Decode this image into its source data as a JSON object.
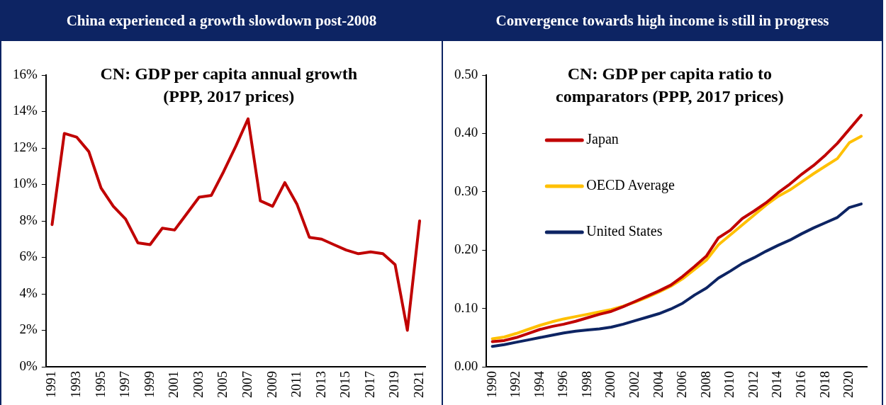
{
  "chart_data": [
    {
      "type": "line",
      "title": "China experienced a growth slowdown post-2008",
      "subtitle": "CN: GDP per capita annual growth (PPP, 2017 prices)",
      "categories": [
        "1991",
        null,
        "1993",
        null,
        "1995",
        null,
        "1997",
        null,
        "1999",
        null,
        "2001",
        null,
        "2003",
        null,
        "2005",
        null,
        "2007",
        null,
        "2009",
        null,
        "2011",
        null,
        "2013",
        null,
        "2015",
        null,
        "2017",
        null,
        "2019",
        null,
        "2021"
      ],
      "values": [
        7.8,
        12.8,
        12.6,
        11.8,
        9.8,
        8.8,
        8.1,
        6.8,
        6.7,
        7.6,
        7.5,
        8.4,
        9.3,
        9.4,
        10.7,
        12.1,
        13.6,
        9.1,
        8.8,
        10.1,
        8.9,
        7.1,
        7.0,
        6.7,
        6.4,
        6.2,
        6.3,
        6.2,
        5.6,
        2.0,
        8.0
      ],
      "color": "#c00000",
      "ylim": [
        0,
        16
      ],
      "yticks": [
        {
          "value": 0,
          "label": "0%"
        },
        {
          "value": 2,
          "label": "2%"
        },
        {
          "value": 4,
          "label": "4%"
        },
        {
          "value": 6,
          "label": "6%"
        },
        {
          "value": 8,
          "label": "8%"
        },
        {
          "value": 10,
          "label": "10%"
        },
        {
          "value": 12,
          "label": "12%"
        },
        {
          "value": 14,
          "label": "14%"
        },
        {
          "value": 16,
          "label": "16%"
        }
      ],
      "grid": false,
      "legend": false,
      "marker": "none",
      "line_style": "solid"
    },
    {
      "type": "line",
      "title": "Convergence towards high income is still in progress",
      "subtitle": "CN: GDP per capita ratio to comparators (PPP, 2017 prices)",
      "categories": [
        "1990",
        null,
        "1992",
        null,
        "1994",
        null,
        "1996",
        null,
        "1998",
        null,
        "2000",
        null,
        "2002",
        null,
        "2004",
        null,
        "2006",
        null,
        "2008",
        null,
        "2010",
        null,
        "2012",
        null,
        "2014",
        null,
        "2016",
        null,
        "2018",
        null,
        "2020",
        null
      ],
      "series": [
        {
          "name": "Japan",
          "color": "#c00000",
          "values": [
            0.043,
            0.045,
            0.05,
            0.057,
            0.064,
            0.069,
            0.073,
            0.078,
            0.084,
            0.09,
            0.095,
            0.103,
            0.112,
            0.121,
            0.13,
            0.14,
            0.155,
            0.172,
            0.19,
            0.221,
            0.234,
            0.254,
            0.267,
            0.281,
            0.298,
            0.313,
            0.33,
            0.345,
            0.363,
            0.383,
            0.407,
            0.431
          ]
        },
        {
          "name": "OECD Average",
          "color": "#ffc000",
          "values": [
            0.048,
            0.051,
            0.057,
            0.064,
            0.071,
            0.077,
            0.082,
            0.086,
            0.09,
            0.094,
            0.098,
            0.104,
            0.111,
            0.119,
            0.128,
            0.138,
            0.151,
            0.167,
            0.183,
            0.209,
            0.226,
            0.243,
            0.26,
            0.277,
            0.292,
            0.303,
            0.317,
            0.331,
            0.344,
            0.357,
            0.384,
            0.395
          ]
        },
        {
          "name": "United States",
          "color": "#0d2463",
          "values": [
            0.035,
            0.038,
            0.042,
            0.046,
            0.05,
            0.054,
            0.058,
            0.061,
            0.063,
            0.065,
            0.068,
            0.073,
            0.079,
            0.085,
            0.091,
            0.099,
            0.109,
            0.123,
            0.135,
            0.152,
            0.164,
            0.177,
            0.187,
            0.198,
            0.208,
            0.217,
            0.228,
            0.238,
            0.247,
            0.256,
            0.273,
            0.279
          ]
        }
      ],
      "ylim": [
        0,
        0.5
      ],
      "yticks": [
        {
          "value": 0,
          "label": "0.00"
        },
        {
          "value": 0.1,
          "label": "0.10"
        },
        {
          "value": 0.2,
          "label": "0.20"
        },
        {
          "value": 0.3,
          "label": "0.30"
        },
        {
          "value": 0.4,
          "label": "0.40"
        },
        {
          "value": 0.5,
          "label": "0.50"
        }
      ],
      "grid": false,
      "legend": "top left",
      "marker": "none",
      "line_style": "solid"
    }
  ]
}
